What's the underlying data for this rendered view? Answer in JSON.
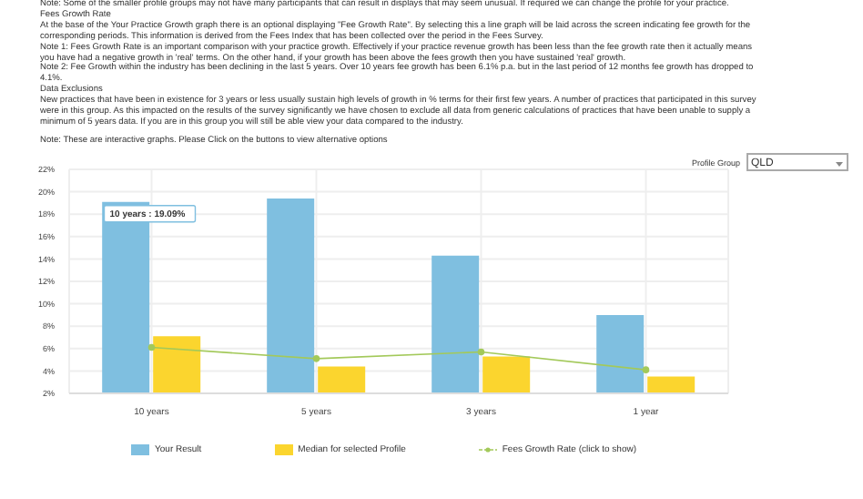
{
  "chart_data": {
    "type": "bar",
    "categories": [
      "10 years",
      "5 years",
      "3 years",
      "1 year"
    ],
    "series": [
      {
        "name": "Your Result",
        "color": "#7fbfe0",
        "values": [
          19.09,
          19.4,
          14.3,
          9.0
        ]
      },
      {
        "name": "Median for selected Profile",
        "color": "#fbd52e",
        "values": [
          7.1,
          4.4,
          5.3,
          3.5
        ]
      },
      {
        "name": "Fees Growth Rate (click to show)",
        "type": "line",
        "color": "#a3c95a",
        "values": [
          6.1,
          5.1,
          5.7,
          4.1
        ]
      }
    ],
    "ylim": [
      2,
      22
    ],
    "yticks": [
      {
        "value": 2,
        "label": "2%"
      },
      {
        "value": 4,
        "label": "4%"
      },
      {
        "value": 6,
        "label": "6%"
      },
      {
        "value": 8,
        "label": "8%"
      },
      {
        "value": 10,
        "label": "10%"
      },
      {
        "value": 12,
        "label": "12%"
      },
      {
        "value": 14,
        "label": "14%"
      },
      {
        "value": 16,
        "label": "16%"
      },
      {
        "value": 18,
        "label": "18%"
      },
      {
        "value": 20,
        "label": "20%"
      },
      {
        "value": 22,
        "label": "22%"
      }
    ],
    "grid": true,
    "legend": "bottom",
    "marker": "circle",
    "annotations": [
      "Note: Some of the smaller profile groups may not have many participants that can result in displays that may seem unusual. If required we can change the profile for your practice.",
      "Fees Growth Rate",
      "At the base of the Your Practice Growth graph there is an optional displaying \"Fee Growth Rate\". By selecting this a line graph will be laid across the screen indicating fee growth for the corresponding periods. This information is derived from the Fees Index that has been collected over the period in the Fees Survey.",
      "Note 1: Fees Growth Rate is an important comparison with your practice growth. Effectively if your practice revenue growth has been less than the fee growth rate then it actually means you have had a negative growth in 'real' terms. On the other hand, if your growth has been above the fees growth then you have sustained 'real' growth.",
      "Note 2:  Fee Growth within the industry has been declining in the last 5 years. Over 10 years fee growth has been 6.1% p.a. but in the last period of 12 months fee growth has dropped to 4.1%.",
      "Data Exclusions",
      "New practices that have been in existence for 3 years or less usually sustain high levels of growth in % terms for their first few years. A number of practices that participated in this survey were in this group. As this impacted on the results of the survey significantly we have chosen to exclude all data from generic calculations of practices that have been unable to supply a minimum of 5 years data. If you are in this group you will still be able view your data compared to the industry.",
      "Note: These are interactive graphs. Please Click on the buttons to view alternative options",
      "Profile Group",
      "QLD",
      {
        "text": "10 years : 19.09%",
        "x": "10 years",
        "y": 19.09
      }
    ]
  }
}
